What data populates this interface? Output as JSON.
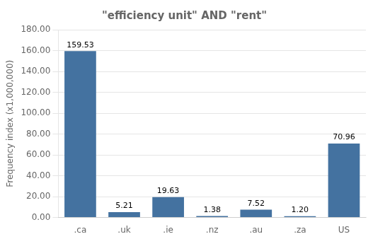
{
  "chart_data": {
    "type": "bar",
    "title": "\"efficiency unit\" AND \"rent\"",
    "ylabel": "Frequency index (x1,000,000)",
    "categories": [
      ".ca",
      ".uk",
      ".ie",
      ".nz",
      ".au",
      ".za",
      "US"
    ],
    "values": [
      159.53,
      5.21,
      19.63,
      1.38,
      7.52,
      1.2,
      70.96
    ],
    "value_labels": [
      "159.53",
      "5.21",
      "19.63",
      "1.38",
      "7.52",
      "1.20",
      "70.96"
    ],
    "data_labels": true,
    "color": "#4472a0",
    "ylim": [
      0,
      180
    ],
    "yticks": [
      {
        "value": 0,
        "label": "0.00"
      },
      {
        "value": 20,
        "label": "20.00"
      },
      {
        "value": 40,
        "label": "40.00"
      },
      {
        "value": 60,
        "label": "60.00"
      },
      {
        "value": 80,
        "label": "80.00"
      },
      {
        "value": 100,
        "label": "100.00"
      },
      {
        "value": 120,
        "label": "120.00"
      },
      {
        "value": 140,
        "label": "140.00"
      },
      {
        "value": 160,
        "label": "160.00"
      },
      {
        "value": 180,
        "label": "180.00"
      }
    ],
    "grid": true
  }
}
